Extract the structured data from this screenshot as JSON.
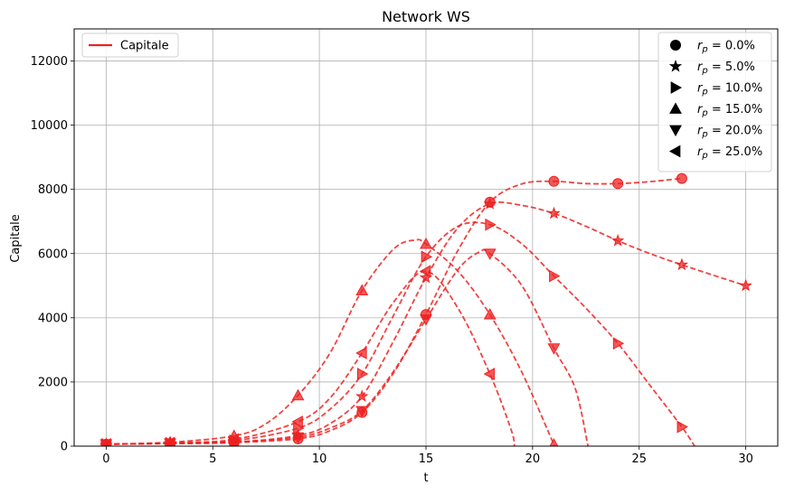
{
  "chart_data": {
    "type": "line",
    "title": "Network WS",
    "xlabel": "t",
    "ylabel": "Capitale",
    "xlim": [
      -1.5,
      31.5
    ],
    "ylim": [
      0,
      13000
    ],
    "xticks": [
      0,
      5,
      10,
      15,
      20,
      25,
      30
    ],
    "yticks": [
      0,
      2000,
      4000,
      6000,
      8000,
      10000,
      12000
    ],
    "grid": true,
    "color": "#ee2222",
    "legend_lines": {
      "placement": "top-left",
      "entries": [
        {
          "label": "Capitale",
          "style": "solid"
        }
      ]
    },
    "legend_markers": {
      "placement": "top-right",
      "entries": [
        {
          "marker": "circle",
          "prefix": "r",
          "sub": "p",
          "value": " = 0.0%"
        },
        {
          "marker": "star",
          "prefix": "r",
          "sub": "p",
          "value": " = 5.0%"
        },
        {
          "marker": "triangle-right",
          "prefix": "r",
          "sub": "p",
          "value": " = 10.0%"
        },
        {
          "marker": "triangle-up",
          "prefix": "r",
          "sub": "p",
          "value": " = 15.0%"
        },
        {
          "marker": "triangle-down",
          "prefix": "r",
          "sub": "p",
          "value": " = 20.0%"
        },
        {
          "marker": "triangle-left",
          "prefix": "r",
          "sub": "p",
          "value": " = 25.0%"
        }
      ]
    },
    "series": [
      {
        "marker": "circle",
        "points": [
          [
            0,
            60
          ],
          [
            3,
            80
          ],
          [
            6,
            110
          ],
          [
            9,
            230
          ],
          [
            12,
            1050
          ],
          [
            15,
            4100
          ],
          [
            18,
            7600
          ],
          [
            21,
            8250
          ],
          [
            24,
            8180
          ],
          [
            27,
            8340
          ]
        ],
        "curve": [
          [
            0,
            60
          ],
          [
            3,
            80
          ],
          [
            6,
            110
          ],
          [
            9,
            230
          ],
          [
            10.5,
            480
          ],
          [
            12,
            1050
          ],
          [
            13.5,
            2300
          ],
          [
            15,
            4100
          ],
          [
            16.5,
            6100
          ],
          [
            18,
            7600
          ],
          [
            19.5,
            8170
          ],
          [
            21,
            8250
          ],
          [
            22.5,
            8180
          ],
          [
            24,
            8180
          ],
          [
            25.5,
            8240
          ],
          [
            27,
            8340
          ]
        ]
      },
      {
        "marker": "star",
        "points": [
          [
            0,
            60
          ],
          [
            3,
            85
          ],
          [
            6,
            120
          ],
          [
            9,
            330
          ],
          [
            12,
            1550
          ],
          [
            15,
            5250
          ],
          [
            18,
            7550
          ],
          [
            21,
            7250
          ],
          [
            24,
            6400
          ],
          [
            27,
            5650
          ],
          [
            30,
            5000
          ]
        ],
        "curve": [
          [
            0,
            60
          ],
          [
            3,
            85
          ],
          [
            6,
            120
          ],
          [
            9,
            330
          ],
          [
            10.5,
            700
          ],
          [
            12,
            1550
          ],
          [
            13.5,
            3300
          ],
          [
            15,
            5250
          ],
          [
            16.5,
            6800
          ],
          [
            18,
            7550
          ],
          [
            19.5,
            7500
          ],
          [
            21,
            7250
          ],
          [
            22.5,
            6850
          ],
          [
            24,
            6400
          ],
          [
            25.5,
            6000
          ],
          [
            27,
            5650
          ],
          [
            28.5,
            5320
          ],
          [
            30,
            5000
          ]
        ]
      },
      {
        "marker": "triangle-right",
        "points": [
          [
            0,
            60
          ],
          [
            3,
            95
          ],
          [
            6,
            170
          ],
          [
            9,
            560
          ],
          [
            12,
            2250
          ],
          [
            15,
            5900
          ],
          [
            18,
            6900
          ],
          [
            21,
            5300
          ],
          [
            24,
            3200
          ],
          [
            27,
            600
          ]
        ],
        "curve": [
          [
            0,
            60
          ],
          [
            3,
            95
          ],
          [
            6,
            170
          ],
          [
            9,
            560
          ],
          [
            10.5,
            1150
          ],
          [
            12,
            2250
          ],
          [
            13.5,
            4100
          ],
          [
            15,
            5900
          ],
          [
            16.5,
            6850
          ],
          [
            18,
            6900
          ],
          [
            19.5,
            6300
          ],
          [
            21,
            5300
          ],
          [
            22.5,
            4300
          ],
          [
            24,
            3200
          ],
          [
            25.5,
            1900
          ],
          [
            27,
            600
          ],
          [
            27.6,
            0
          ]
        ]
      },
      {
        "marker": "triangle-up",
        "points": [
          [
            0,
            60
          ],
          [
            3,
            120
          ],
          [
            6,
            320
          ],
          [
            9,
            1580
          ],
          [
            12,
            4850
          ],
          [
            15,
            6300
          ],
          [
            18,
            4100
          ],
          [
            21,
            50
          ]
        ],
        "curve": [
          [
            0,
            60
          ],
          [
            3,
            120
          ],
          [
            6,
            320
          ],
          [
            7.5,
            700
          ],
          [
            9,
            1580
          ],
          [
            10.5,
            2900
          ],
          [
            12,
            4850
          ],
          [
            13.5,
            6150
          ],
          [
            14.5,
            6420
          ],
          [
            15,
            6300
          ],
          [
            16.5,
            5450
          ],
          [
            18,
            4100
          ],
          [
            19.5,
            2300
          ],
          [
            21,
            50
          ],
          [
            21.05,
            0
          ]
        ]
      },
      {
        "marker": "triangle-down",
        "points": [
          [
            0,
            60
          ],
          [
            3,
            90
          ],
          [
            6,
            130
          ],
          [
            9,
            280
          ],
          [
            12,
            1100
          ],
          [
            15,
            3950
          ],
          [
            18,
            6000
          ],
          [
            21,
            3050
          ]
        ],
        "curve": [
          [
            0,
            60
          ],
          [
            3,
            90
          ],
          [
            6,
            130
          ],
          [
            9,
            280
          ],
          [
            10.5,
            560
          ],
          [
            12,
            1100
          ],
          [
            13.5,
            2350
          ],
          [
            15,
            3950
          ],
          [
            16.5,
            5500
          ],
          [
            17.5,
            6050
          ],
          [
            18,
            6000
          ],
          [
            19.5,
            5000
          ],
          [
            21,
            3050
          ],
          [
            22,
            1800
          ],
          [
            22.6,
            0
          ]
        ]
      },
      {
        "marker": "triangle-left",
        "points": [
          [
            0,
            60
          ],
          [
            3,
            100
          ],
          [
            6,
            210
          ],
          [
            9,
            760
          ],
          [
            12,
            2900
          ],
          [
            15,
            5450
          ],
          [
            18,
            2250
          ]
        ],
        "curve": [
          [
            0,
            60
          ],
          [
            3,
            100
          ],
          [
            6,
            210
          ],
          [
            9,
            760
          ],
          [
            10.5,
            1500
          ],
          [
            12,
            2900
          ],
          [
            13.5,
            4500
          ],
          [
            15,
            5450
          ],
          [
            16.5,
            4300
          ],
          [
            18,
            2250
          ],
          [
            19,
            500
          ],
          [
            19.15,
            0
          ]
        ]
      }
    ]
  }
}
